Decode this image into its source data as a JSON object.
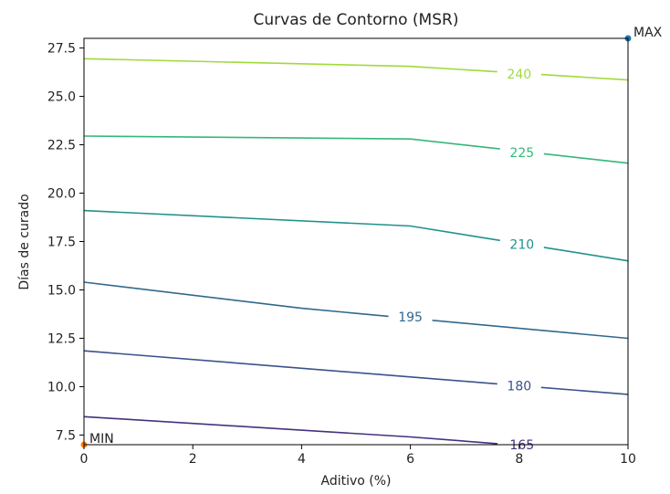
{
  "chart_data": {
    "type": "contour",
    "title": "Curvas de Contorno (MSR)",
    "xlabel": "Aditivo (%)",
    "ylabel": "Días de curado",
    "xlim": [
      0,
      10
    ],
    "ylim": [
      7,
      28
    ],
    "xticks": [
      0,
      2,
      4,
      6,
      8,
      10
    ],
    "yticks": [
      7.5,
      10.0,
      12.5,
      15.0,
      17.5,
      20.0,
      22.5,
      25.0,
      27.5
    ],
    "grid": false,
    "colors": {
      "165": "#46307e",
      "180": "#3b528b",
      "195": "#31688e",
      "210": "#21918c",
      "225": "#35b779",
      "240": "#a0da39"
    },
    "levels": [
      {
        "level": "165",
        "points": [
          [
            0,
            8.45
          ],
          [
            6,
            7.4
          ],
          [
            7.6,
            7.05
          ]
        ],
        "label_x": 8.05,
        "label_y": 7.0
      },
      {
        "level": "180",
        "points": [
          [
            0,
            11.85
          ],
          [
            6,
            10.5
          ],
          [
            10,
            9.6
          ]
        ],
        "label_x": 8.0,
        "label_y": 10.05
      },
      {
        "level": "195",
        "points": [
          [
            0,
            15.4
          ],
          [
            4,
            14.05
          ],
          [
            10,
            12.5
          ]
        ],
        "label_x": 6.0,
        "label_y": 13.6
      },
      {
        "level": "210",
        "points": [
          [
            0,
            19.1
          ],
          [
            6,
            18.3
          ],
          [
            10,
            16.5
          ]
        ],
        "label_x": 8.05,
        "label_y": 17.35
      },
      {
        "level": "225",
        "points": [
          [
            0,
            22.95
          ],
          [
            6,
            22.8
          ],
          [
            10,
            21.55
          ]
        ],
        "label_x": 8.05,
        "label_y": 22.1
      },
      {
        "level": "240",
        "points": [
          [
            0,
            26.95
          ],
          [
            6,
            26.55
          ],
          [
            10,
            25.85
          ]
        ],
        "label_x": 8.0,
        "label_y": 26.15
      }
    ],
    "markers": [
      {
        "label": "MAX",
        "x": 10,
        "y": 28,
        "color": "#1f77b4"
      },
      {
        "label": "MIN",
        "x": 0,
        "y": 7,
        "color": "#ff7f0e"
      }
    ]
  }
}
